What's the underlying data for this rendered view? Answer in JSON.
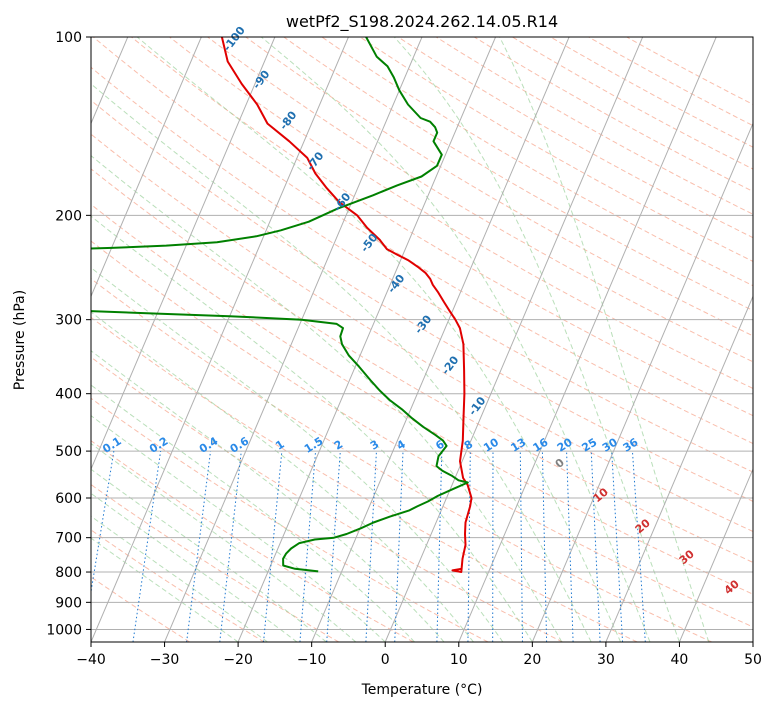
{
  "chart_data": {
    "type": "line",
    "title": "wetPf2_S198.2024.262.14.05.R14",
    "xlabel": "Temperature (°C)",
    "ylabel": "Pressure (hPa)",
    "xlim": [
      -40,
      50
    ],
    "ylim": [
      1050,
      100
    ],
    "y_scale": "log",
    "grid": true,
    "x_ticks": [
      -40,
      -30,
      -20,
      -10,
      0,
      10,
      20,
      30,
      40,
      50
    ],
    "x_tick_labels": [
      "−40",
      "−30",
      "−20",
      "−10",
      "0",
      "10",
      "20",
      "30",
      "40",
      "50"
    ],
    "y_ticks": [
      100,
      200,
      300,
      400,
      500,
      600,
      700,
      800,
      900,
      1000
    ],
    "y_tick_labels": [
      "100",
      "200",
      "300",
      "400",
      "500",
      "600",
      "700",
      "800",
      "900",
      "1000"
    ],
    "series": [
      {
        "role": "temperature",
        "color": "#e00000",
        "points": [
          [
            6.1,
            790
          ],
          [
            5.0,
            795
          ],
          [
            6.3,
            800
          ],
          [
            5.7,
            760
          ],
          [
            5.3,
            720
          ],
          [
            4.6,
            690
          ],
          [
            4.0,
            660
          ],
          [
            3.7,
            620
          ],
          [
            3.4,
            600
          ],
          [
            2.1,
            570
          ],
          [
            1.1,
            555
          ],
          [
            -0.3,
            520
          ],
          [
            -1.1,
            480
          ],
          [
            -2.3,
            440
          ],
          [
            -3.6,
            400
          ],
          [
            -5.0,
            365
          ],
          [
            -6.6,
            330
          ],
          [
            -8.0,
            310
          ],
          [
            -9.1,
            300
          ],
          [
            -10.4,
            290
          ],
          [
            -11.7,
            280
          ],
          [
            -13.0,
            270
          ],
          [
            -14.2,
            262
          ],
          [
            -14.9,
            256
          ],
          [
            -15.9,
            250
          ],
          [
            -17.1,
            245
          ],
          [
            -19.0,
            238
          ],
          [
            -20.8,
            233
          ],
          [
            -22.5,
            228
          ],
          [
            -24.0,
            220
          ],
          [
            -26.4,
            210
          ],
          [
            -28.5,
            200
          ],
          [
            -31.7,
            190
          ],
          [
            -34.2,
            180
          ],
          [
            -36.6,
            170
          ],
          [
            -38.6,
            160
          ],
          [
            -42.0,
            150
          ],
          [
            -46.0,
            140
          ],
          [
            -48.5,
            130
          ],
          [
            -51.8,
            120
          ],
          [
            -55.0,
            110
          ],
          [
            -57.2,
            100
          ]
        ]
      },
      {
        "role": "dewpoint",
        "color": "#008000",
        "points": [
          [
            -13.2,
            798
          ],
          [
            -16.5,
            790
          ],
          [
            -18.3,
            780
          ],
          [
            -18.7,
            760
          ],
          [
            -18.6,
            745
          ],
          [
            -18.2,
            730
          ],
          [
            -17.4,
            715
          ],
          [
            -15.5,
            705
          ],
          [
            -13.0,
            700
          ],
          [
            -11.5,
            690
          ],
          [
            -9.9,
            675
          ],
          [
            -8.5,
            660
          ],
          [
            -6.6,
            645
          ],
          [
            -4.4,
            630
          ],
          [
            -3.5,
            620
          ],
          [
            -2.3,
            608
          ],
          [
            -1.3,
            595
          ],
          [
            0.3,
            580
          ],
          [
            2.0,
            565
          ],
          [
            0.6,
            560
          ],
          [
            -0.6,
            550
          ],
          [
            -2.1,
            540
          ],
          [
            -3.2,
            530
          ],
          [
            -3.5,
            510
          ],
          [
            -3.0,
            490
          ],
          [
            -3.8,
            480
          ],
          [
            -5.1,
            470
          ],
          [
            -7.3,
            455
          ],
          [
            -9.3,
            440
          ],
          [
            -11.2,
            425
          ],
          [
            -13.4,
            410
          ],
          [
            -15.3,
            395
          ],
          [
            -17.1,
            380
          ],
          [
            -19.5,
            360
          ],
          [
            -21.5,
            345
          ],
          [
            -23.1,
            330
          ],
          [
            -23.8,
            320
          ],
          [
            -23.9,
            310
          ],
          [
            -25.0,
            305
          ],
          [
            -30.0,
            300
          ],
          [
            -40.0,
            296
          ],
          [
            -50.0,
            293
          ],
          [
            -59.8,
            290
          ],
          [
            -75.0,
            230
          ],
          [
            -70.0,
            229
          ],
          [
            -60.0,
            227
          ],
          [
            -52.7,
            225
          ],
          [
            -46.0,
            222
          ],
          [
            -41.0,
            217
          ],
          [
            -38.0,
            212
          ],
          [
            -34.7,
            205
          ],
          [
            -31.6,
            195
          ],
          [
            -27.5,
            185
          ],
          [
            -24.8,
            178
          ],
          [
            -22.0,
            172
          ],
          [
            -20.5,
            165
          ],
          [
            -20.5,
            158
          ],
          [
            -22.4,
            150
          ],
          [
            -22.4,
            145
          ],
          [
            -23.0,
            142
          ],
          [
            -24.0,
            139
          ],
          [
            -25.5,
            137
          ],
          [
            -28.0,
            130
          ],
          [
            -30.0,
            123
          ],
          [
            -31.5,
            117
          ],
          [
            -33.0,
            112
          ],
          [
            -35.0,
            108
          ],
          [
            -37.6,
            100
          ]
        ]
      }
    ],
    "mixing_ratio_labels": [
      "0.1",
      "0.2",
      "0.4",
      "0.6",
      "1",
      "1.5",
      "2",
      "3",
      "4",
      "6",
      "8",
      "10",
      "13",
      "16",
      "20",
      "25",
      "30",
      "36"
    ],
    "dry_adiabat_labels": [
      "-100",
      "-90",
      "-80",
      "-70",
      "-60",
      "-50",
      "-40",
      "-30",
      "-20",
      "-10"
    ],
    "moist_adiabat_labels": [
      "0",
      "10",
      "20",
      "30",
      "40"
    ]
  }
}
